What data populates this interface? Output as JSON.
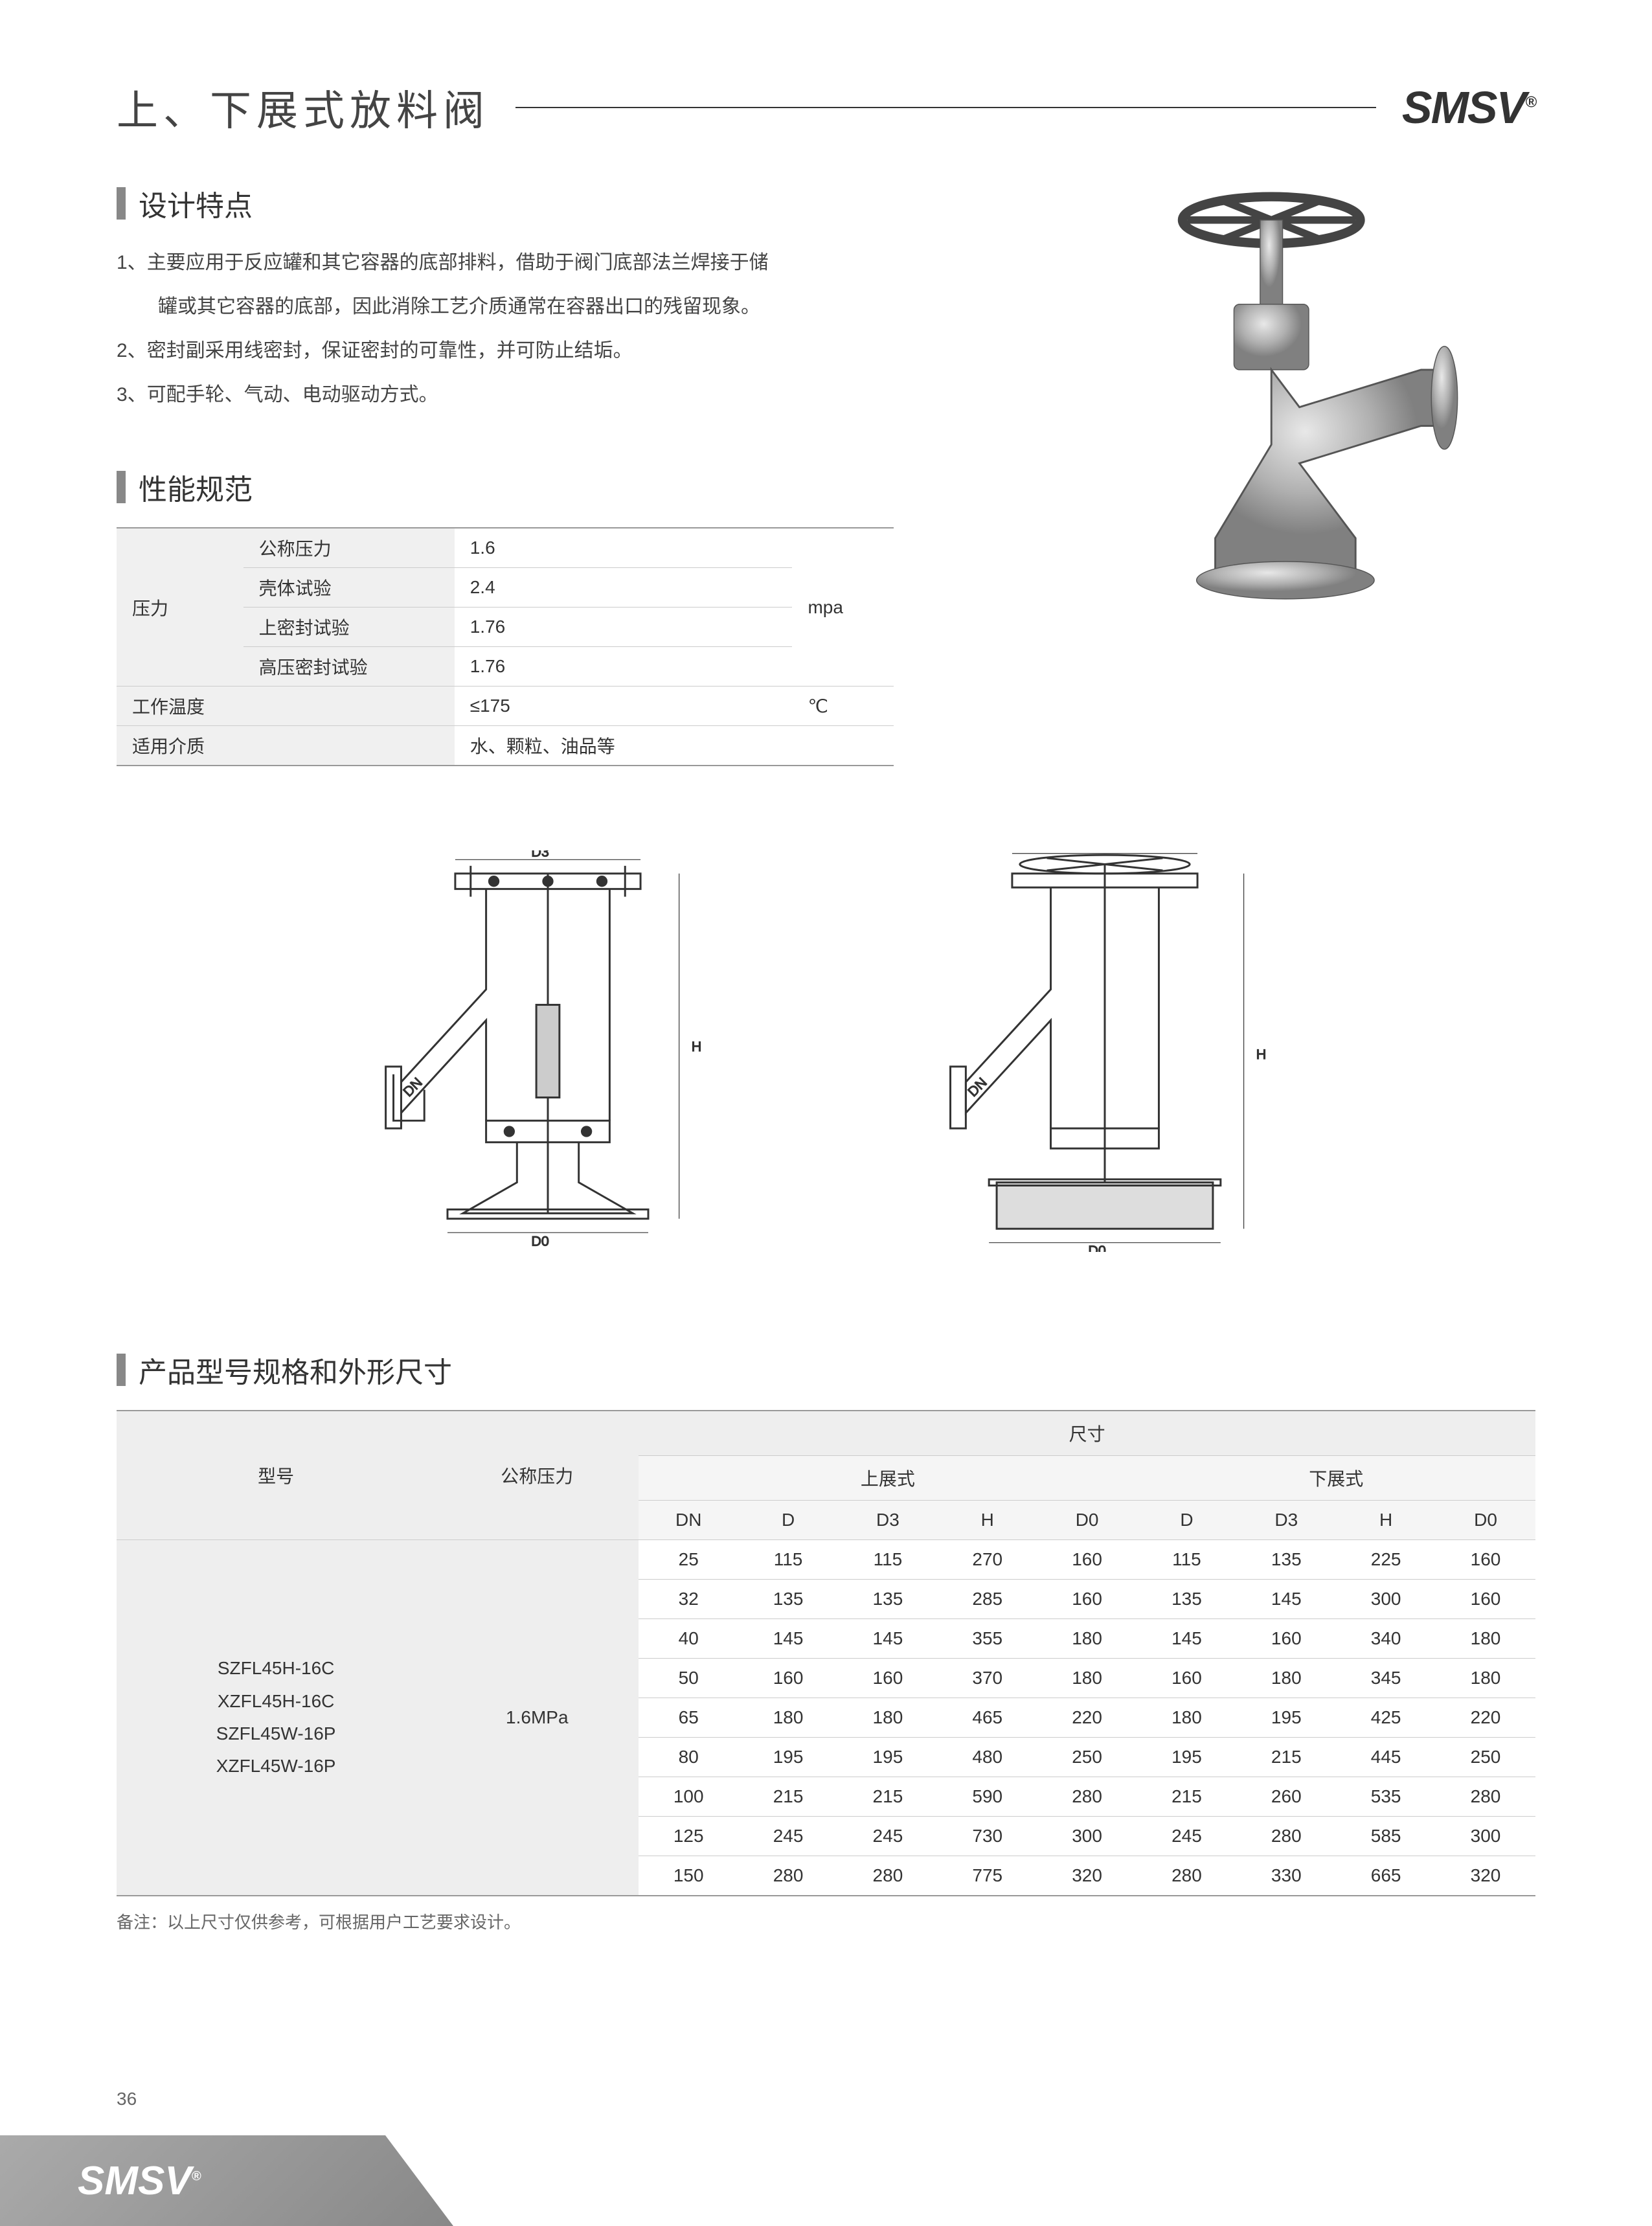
{
  "page": {
    "title": "上、下展式放料阀",
    "brand": "SMSV",
    "brand_mark": "®",
    "page_number": "36"
  },
  "sections": {
    "features_title": "设计特点",
    "spec_title": "性能规范",
    "dimensions_title": "产品型号规格和外形尺寸"
  },
  "features": [
    {
      "num": "1、",
      "text": "主要应用于反应罐和其它容器的底部排料，借助于阀门底部法兰焊接于储"
    },
    {
      "num": "",
      "text": "罐或其它容器的底部，因此消除工艺介质通常在容器出口的残留现象。"
    },
    {
      "num": "2、",
      "text": "密封副采用线密封，保证密封的可靠性，并可防止结垢。"
    },
    {
      "num": "3、",
      "text": "可配手轮、气动、电动驱动方式。"
    }
  ],
  "spec_table": {
    "pressure_label": "压力",
    "rows": [
      {
        "sub": "公称压力",
        "val": "1.6",
        "unit": ""
      },
      {
        "sub": "壳体试验",
        "val": "2.4",
        "unit": ""
      },
      {
        "sub": "上密封试验",
        "val": "1.76",
        "unit": "mpa"
      },
      {
        "sub": "高压密封试验",
        "val": "1.76",
        "unit": ""
      }
    ],
    "temp_label": "工作温度",
    "temp_val": "≤175",
    "temp_unit": "℃",
    "media_label": "适用介质",
    "media_val": "水、颗粒、油品等"
  },
  "diagram_labels": {
    "d3": "D3",
    "d0": "D0",
    "dn": "DN",
    "h": "H"
  },
  "dim_table": {
    "hdr_model": "型号",
    "hdr_pressure": "公称压力",
    "hdr_dim": "尺寸",
    "hdr_upper": "上展式",
    "hdr_lower": "下展式",
    "cols": [
      "DN",
      "D",
      "D3",
      "H",
      "D0",
      "D",
      "D3",
      "H",
      "D0"
    ],
    "model_lines": [
      "SZFL45H-16C",
      "XZFL45H-16C",
      "SZFL45W-16P",
      "XZFL45W-16P"
    ],
    "pressure": "1.6MPa",
    "rows": [
      [
        "25",
        "115",
        "115",
        "270",
        "160",
        "115",
        "135",
        "225",
        "160"
      ],
      [
        "32",
        "135",
        "135",
        "285",
        "160",
        "135",
        "145",
        "300",
        "160"
      ],
      [
        "40",
        "145",
        "145",
        "355",
        "180",
        "145",
        "160",
        "340",
        "180"
      ],
      [
        "50",
        "160",
        "160",
        "370",
        "180",
        "160",
        "180",
        "345",
        "180"
      ],
      [
        "65",
        "180",
        "180",
        "465",
        "220",
        "180",
        "195",
        "425",
        "220"
      ],
      [
        "80",
        "195",
        "195",
        "480",
        "250",
        "195",
        "215",
        "445",
        "250"
      ],
      [
        "100",
        "215",
        "215",
        "590",
        "280",
        "215",
        "260",
        "535",
        "280"
      ],
      [
        "125",
        "245",
        "245",
        "730",
        "300",
        "245",
        "280",
        "585",
        "300"
      ],
      [
        "150",
        "280",
        "280",
        "775",
        "320",
        "280",
        "330",
        "665",
        "320"
      ]
    ]
  },
  "note": "备注：以上尺寸仅供参考，可根据用户工艺要求设计。",
  "colors": {
    "text": "#333333",
    "subtle": "#666666",
    "border": "#cccccc",
    "header_bg": "#eeeeee",
    "bar": "#888888"
  }
}
